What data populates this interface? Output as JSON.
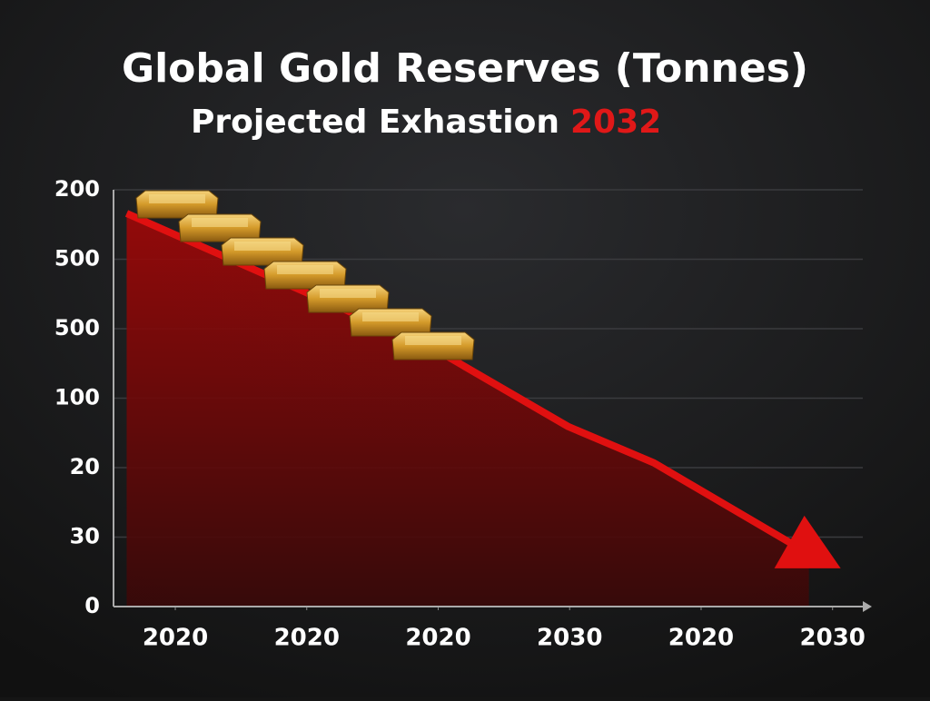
{
  "chart_data": {
    "type": "area-line",
    "title": "Global Gold Reserves (Tonnes)",
    "subtitle": "Projected Exhastion",
    "subtitle_highlight": "2032",
    "x": [
      -0.37,
      1.98,
      2.99,
      3.64,
      4.82
    ],
    "values": [
      5.66,
      3.7,
      2.59,
      2.07,
      0.76
    ],
    "color": "#e01010",
    "xlim": [
      -0.47,
      5.23
    ],
    "xticks": [
      {
        "value": 0,
        "label": "2020"
      },
      {
        "value": 1,
        "label": "2020"
      },
      {
        "value": 2,
        "label": "2020"
      },
      {
        "value": 3,
        "label": "2030"
      },
      {
        "value": 4,
        "label": "2020"
      },
      {
        "value": 5,
        "label": "2030"
      }
    ],
    "ylim": [
      0,
      6
    ],
    "yticks": [
      {
        "value": 0,
        "label": "0"
      },
      {
        "value": 1,
        "label": "30"
      },
      {
        "value": 2,
        "label": "20"
      },
      {
        "value": 3,
        "label": "100"
      },
      {
        "value": 4,
        "label": "500"
      },
      {
        "value": 5,
        "label": "500"
      },
      {
        "value": 6,
        "label": "200"
      }
    ],
    "grid": true
  }
}
